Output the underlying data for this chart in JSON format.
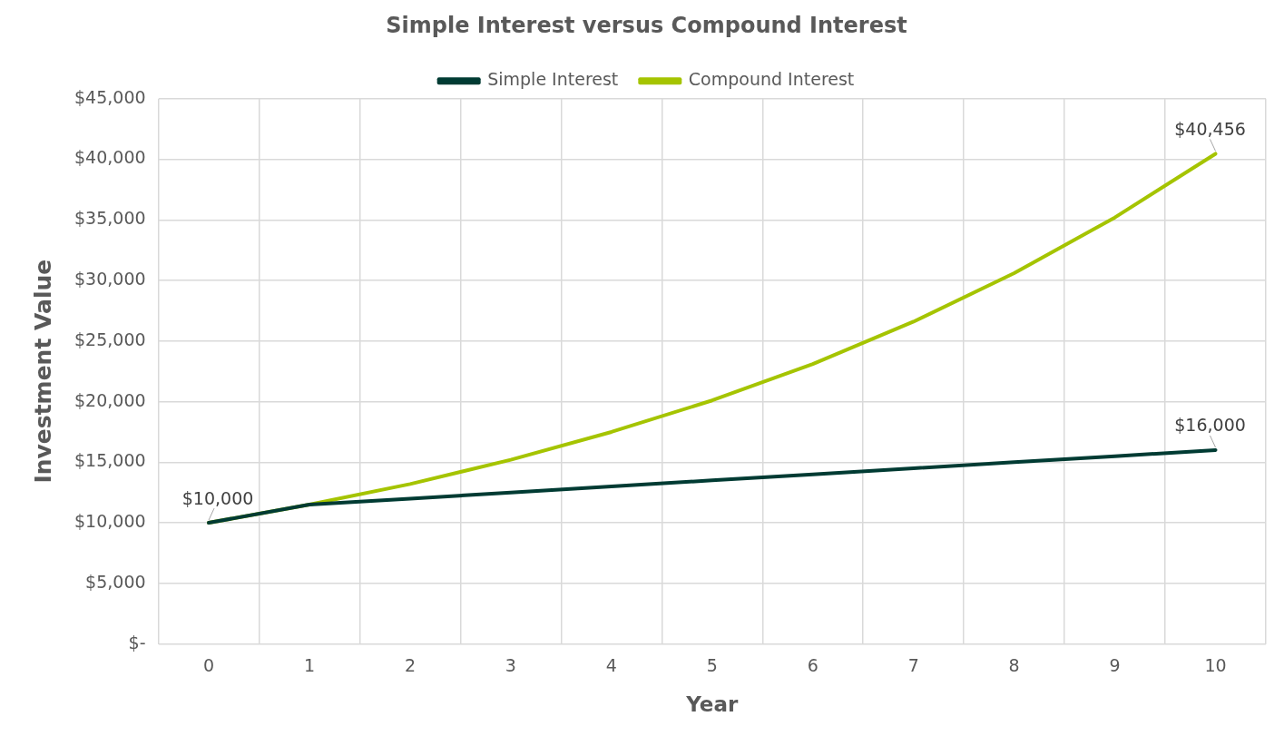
{
  "chart_data": {
    "type": "line",
    "title": "Simple Interest versus Compound Interest",
    "xlabel": "Year",
    "ylabel": "Investment Value",
    "categories": [
      "0",
      "1",
      "2",
      "3",
      "4",
      "5",
      "6",
      "7",
      "8",
      "9",
      "10"
    ],
    "series": [
      {
        "name": "Simple Interest",
        "color": "#003b33",
        "values": [
          10000,
          11500,
          12000,
          12500,
          13000,
          13500,
          14000,
          14500,
          15000,
          15500,
          16000
        ],
        "value_labels": [
          "$10,000",
          null,
          null,
          null,
          null,
          null,
          null,
          null,
          null,
          null,
          "$16,000"
        ]
      },
      {
        "name": "Compound Interest",
        "color": "#a5c400",
        "values": [
          10000,
          11500,
          13200,
          15200,
          17500,
          20100,
          23100,
          26600,
          30600,
          35200,
          40456
        ],
        "value_labels": [
          null,
          null,
          null,
          null,
          null,
          null,
          null,
          null,
          null,
          null,
          "$40,456"
        ]
      }
    ],
    "ylim": [
      0,
      45000
    ],
    "yticks": [
      {
        "value": 0,
        "label": "$-"
      },
      {
        "value": 5000,
        "label": "$5,000"
      },
      {
        "value": 10000,
        "label": "$10,000"
      },
      {
        "value": 15000,
        "label": "$15,000"
      },
      {
        "value": 20000,
        "label": "$20,000"
      },
      {
        "value": 25000,
        "label": "$25,000"
      },
      {
        "value": 30000,
        "label": "$30,000"
      },
      {
        "value": 35000,
        "label": "$35,000"
      },
      {
        "value": 40000,
        "label": "$40,000"
      },
      {
        "value": 45000,
        "label": "$45,000"
      }
    ],
    "grid": true,
    "legend": "top",
    "marker": "none",
    "line_style": "solid"
  }
}
